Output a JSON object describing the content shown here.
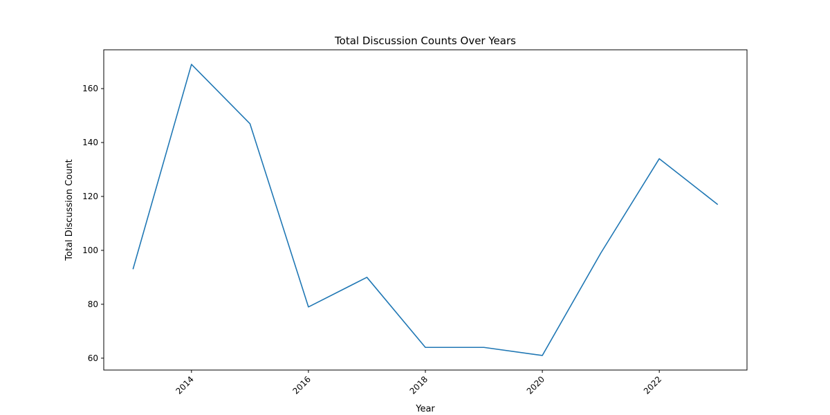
{
  "chart_data": {
    "type": "line",
    "title": "Total Discussion Counts Over Years",
    "xlabel": "Year",
    "ylabel": "Total Discussion Count",
    "x": [
      2013,
      2014,
      2015,
      2016,
      2017,
      2018,
      2019,
      2020,
      2021,
      2022,
      2023
    ],
    "series": [
      {
        "values": [
          93,
          169,
          147,
          79,
          90,
          64,
          64,
          61,
          99,
          134,
          117
        ],
        "color": "#1f77b4"
      }
    ],
    "xlim": [
      2012.5,
      2023.5
    ],
    "ylim": [
      55.6,
      174.4
    ],
    "xticks": [
      2014,
      2016,
      2018,
      2020,
      2022
    ],
    "yticks": [
      60,
      80,
      100,
      120,
      140,
      160
    ],
    "grid": false,
    "legend": "none"
  }
}
